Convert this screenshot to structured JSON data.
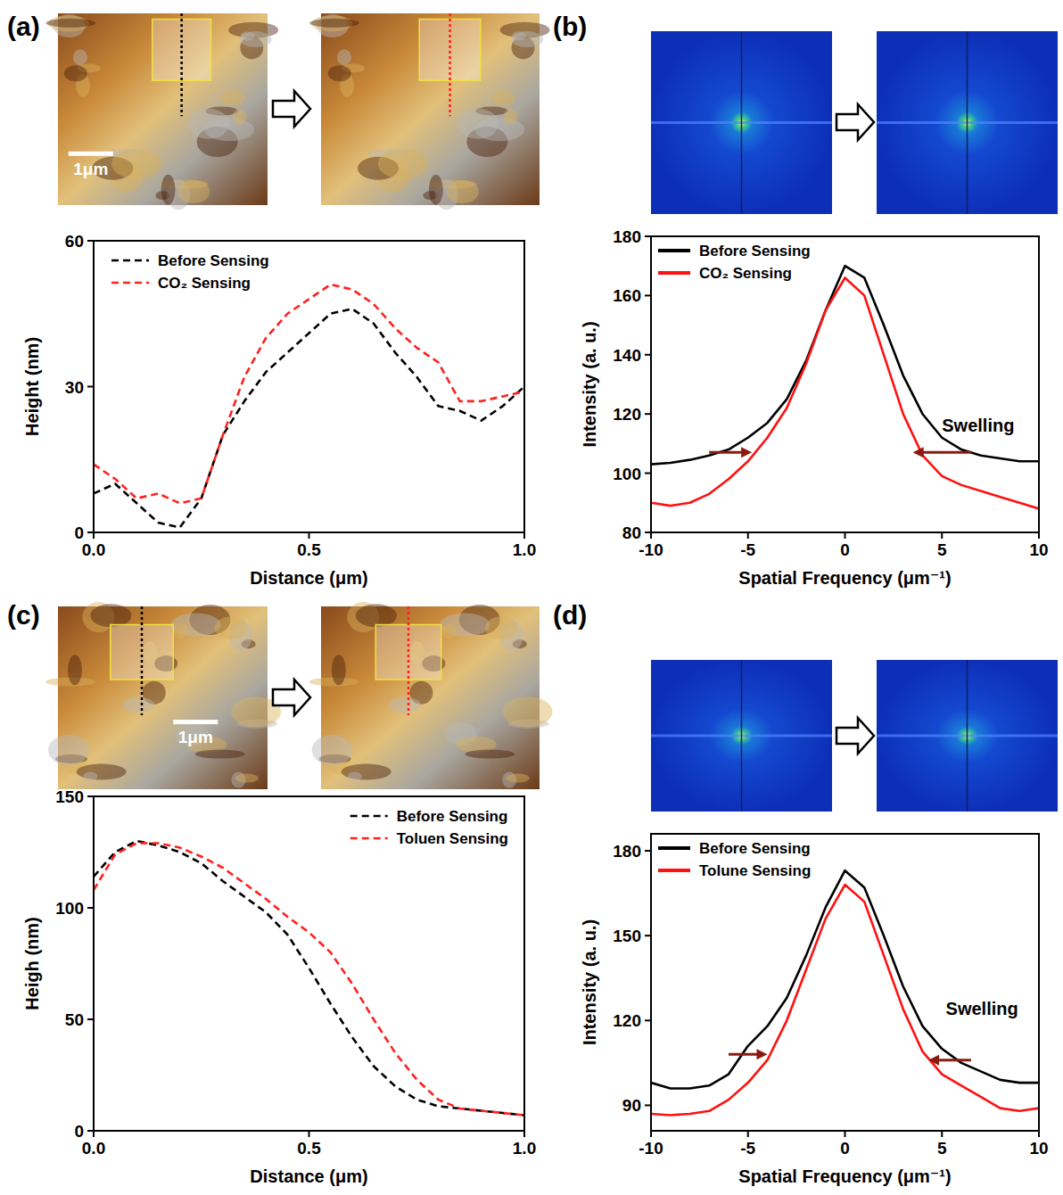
{
  "chart_data": [
    {
      "type": "line",
      "panel_label": "(a)",
      "scale_bar_label": "1μm",
      "x_label": "Distance (μm)",
      "y_label": "Height (nm)",
      "xlim": [
        0,
        1
      ],
      "xticks": [
        {
          "value": 0,
          "label": "0.0"
        },
        {
          "value": 0.5,
          "label": "0.5"
        },
        {
          "value": 1,
          "label": "1.0"
        }
      ],
      "ylim": [
        0,
        60
      ],
      "yticks": [
        0,
        30,
        60
      ],
      "legend": "upper left",
      "x": [
        0,
        0.05,
        0.1,
        0.15,
        0.2,
        0.25,
        0.3,
        0.35,
        0.4,
        0.45,
        0.5,
        0.55,
        0.6,
        0.65,
        0.7,
        0.75,
        0.8,
        0.85,
        0.9,
        0.95,
        1
      ],
      "series": [
        {
          "name": "Before Sensing",
          "color": "#000000",
          "line_style": "dashed",
          "values": [
            8,
            10,
            6,
            2,
            1,
            7,
            20,
            27,
            33,
            37,
            41,
            45,
            46,
            43,
            37,
            32,
            26,
            25,
            23,
            26,
            30
          ]
        },
        {
          "name": "CO₂ Sensing",
          "color": "#ff2020",
          "line_style": "dashed",
          "values": [
            14,
            11,
            7,
            8,
            6,
            7,
            20,
            32,
            40,
            45,
            48,
            51,
            50,
            47,
            42,
            38,
            35,
            27,
            27,
            28,
            29
          ]
        }
      ]
    },
    {
      "type": "line",
      "panel_label": "(b)",
      "annotation": "Swelling",
      "x_label": "Spatial Frequency (μm⁻¹)",
      "y_label": "Intensity (a. u.)",
      "xlim": [
        -10,
        10
      ],
      "xticks": [
        -10,
        -5,
        0,
        5,
        10
      ],
      "ylim": [
        80,
        180
      ],
      "yticks": [
        80,
        100,
        120,
        140,
        160,
        180
      ],
      "legend": "upper left",
      "x": [
        -10,
        -9,
        -8,
        -7,
        -6,
        -5,
        -4,
        -3,
        -2,
        -1,
        0,
        1,
        2,
        3,
        4,
        5,
        6,
        7,
        8,
        9,
        10
      ],
      "series": [
        {
          "name": "Before Sensing",
          "color": "#000000",
          "line_style": "solid",
          "values": [
            103,
            103.5,
            104.5,
            106,
            108,
            112,
            117,
            125,
            138,
            155,
            170,
            166,
            150,
            133,
            120,
            112,
            108,
            106,
            105,
            104,
            104
          ]
        },
        {
          "name": "CO₂ Sensing",
          "color": "#ff1010",
          "line_style": "solid",
          "values": [
            90,
            89,
            90,
            93,
            98,
            104,
            112,
            122,
            137,
            155,
            166,
            160,
            140,
            120,
            106,
            99,
            96,
            94,
            92,
            90,
            88
          ]
        }
      ]
    },
    {
      "type": "line",
      "panel_label": "(c)",
      "scale_bar_label": "1μm",
      "x_label": "Distance (μm)",
      "y_label": "Heigh (nm)",
      "xlim": [
        0,
        1
      ],
      "xticks": [
        {
          "value": 0,
          "label": "0.0"
        },
        {
          "value": 0.5,
          "label": "0.5"
        },
        {
          "value": 1,
          "label": "1.0"
        }
      ],
      "ylim": [
        0,
        150
      ],
      "yticks": [
        0,
        50,
        100,
        150
      ],
      "legend": "upper right",
      "x": [
        0,
        0.05,
        0.1,
        0.15,
        0.2,
        0.25,
        0.3,
        0.35,
        0.4,
        0.45,
        0.5,
        0.55,
        0.6,
        0.65,
        0.7,
        0.75,
        0.8,
        0.85,
        0.9,
        0.95,
        1
      ],
      "series": [
        {
          "name": "Before Sensing",
          "color": "#000000",
          "line_style": "dashed",
          "values": [
            114,
            125,
            130,
            128,
            125,
            120,
            112,
            105,
            98,
            88,
            73,
            57,
            42,
            29,
            20,
            14,
            11,
            10,
            9,
            8,
            7
          ]
        },
        {
          "name": "Toluen Sensing",
          "color": "#ff2020",
          "line_style": "dashed",
          "values": [
            108,
            124,
            129,
            129,
            127,
            123,
            118,
            111,
            104,
            96,
            89,
            80,
            66,
            50,
            35,
            23,
            14,
            10,
            9,
            8,
            7
          ]
        }
      ]
    },
    {
      "type": "line",
      "panel_label": "(d)",
      "annotation": "Swelling",
      "x_label": "Spatial Frequency (μm⁻¹)",
      "y_label": "Intensity (a. u.)",
      "xlim": [
        -10,
        10
      ],
      "xticks": [
        -10,
        -5,
        0,
        5,
        10
      ],
      "ylim": [
        81,
        186
      ],
      "yticks": [
        90,
        120,
        150,
        180
      ],
      "legend": "upper left",
      "x": [
        -10,
        -9,
        -8,
        -7,
        -6,
        -5,
        -4,
        -3,
        -2,
        -1,
        0,
        1,
        2,
        3,
        4,
        5,
        6,
        7,
        8,
        9,
        10
      ],
      "series": [
        {
          "name": "Before Sensing",
          "color": "#000000",
          "line_style": "solid",
          "values": [
            98,
            96,
            96,
            97,
            101,
            111,
            118,
            128,
            143,
            160,
            173,
            167,
            150,
            132,
            118,
            110,
            105,
            102,
            99,
            98,
            98
          ]
        },
        {
          "name": "Tolune Sensing",
          "color": "#ff1010",
          "line_style": "solid",
          "values": [
            87,
            86.5,
            87,
            88,
            92,
            98,
            106,
            120,
            138,
            156,
            168,
            162,
            143,
            124,
            109,
            101,
            97,
            93,
            89,
            88,
            89
          ]
        }
      ]
    }
  ]
}
